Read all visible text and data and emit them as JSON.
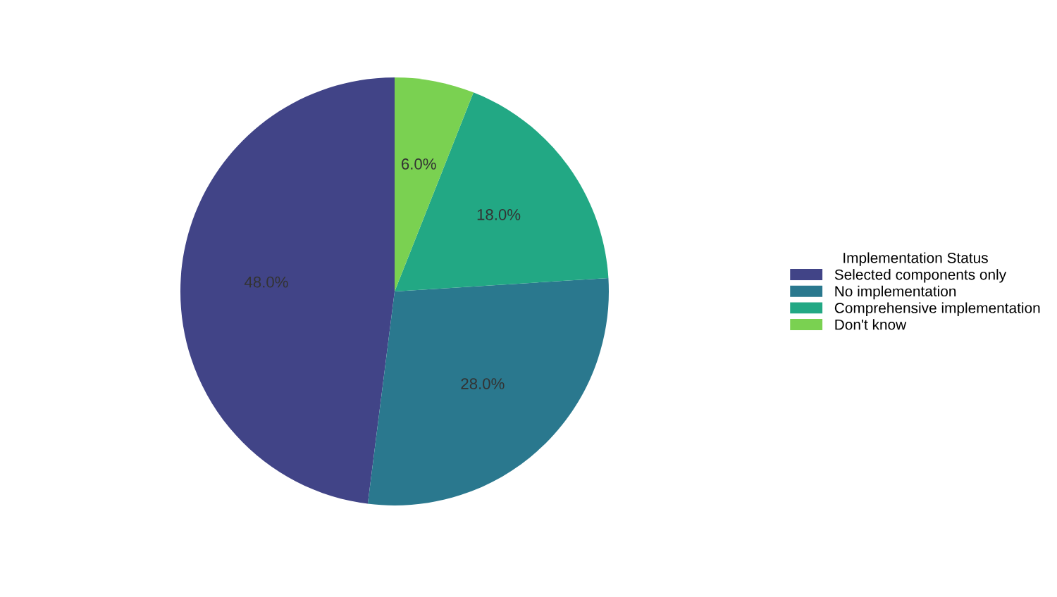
{
  "chart_data": {
    "type": "pie",
    "legend_title": "Implementation Status",
    "legend": "right",
    "categories": [
      "Selected components only",
      "No implementation",
      "Comprehensive implementation",
      "Don't know"
    ],
    "values": [
      48,
      28,
      18,
      6
    ],
    "colors": [
      "#414487",
      "#2a788e",
      "#22a884",
      "#7ad151"
    ],
    "value_labels": [
      "48.0%",
      "28.0%",
      "18.0%",
      "6.0%"
    ]
  }
}
